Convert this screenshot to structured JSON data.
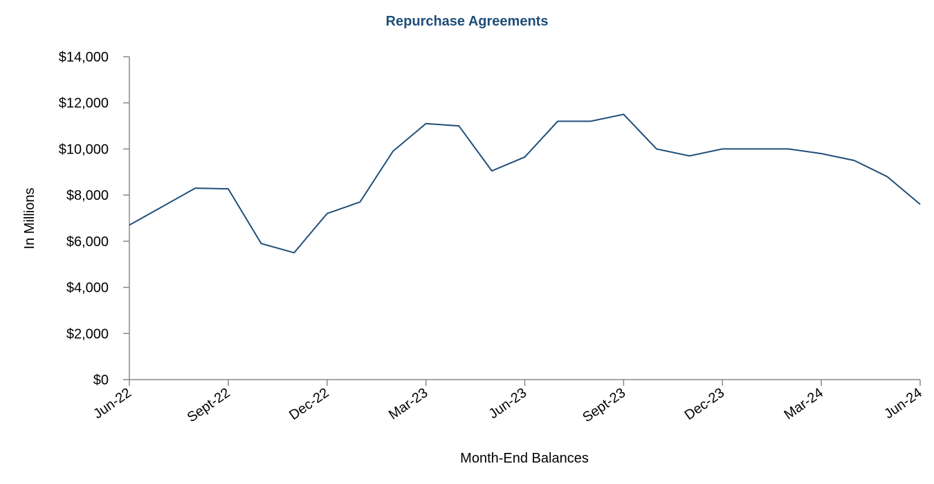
{
  "chart_data": {
    "type": "line",
    "title": "Repurchase Agreements",
    "x_label": "Month-End Balances",
    "y_label": "In Millions",
    "categories": [
      "Jun-22",
      null,
      null,
      "Sept-22",
      null,
      null,
      "Dec-22",
      null,
      null,
      "Mar-23",
      null,
      null,
      "Jun-23",
      null,
      null,
      "Sept-23",
      null,
      null,
      "Dec-23",
      null,
      null,
      "Mar-24",
      null,
      null,
      "Jun-24"
    ],
    "series": [
      {
        "name": "Repurchase Agreements",
        "color": "#1f4e79",
        "values": [
          6700,
          7500,
          8300,
          8270,
          5900,
          5500,
          7200,
          7700,
          9900,
          11100,
          11000,
          9050,
          9650,
          11200,
          11200,
          11500,
          10000,
          9700,
          10000,
          10000,
          10000,
          9800,
          9500,
          8800,
          7600
        ]
      }
    ],
    "ylim": [
      0,
      14000
    ],
    "yticks": [
      {
        "value": 0,
        "label": "$0"
      },
      {
        "value": 2000,
        "label": "$2,000"
      },
      {
        "value": 4000,
        "label": "$4,000"
      },
      {
        "value": 6000,
        "label": "$6,000"
      },
      {
        "value": 8000,
        "label": "$8,000"
      },
      {
        "value": 10000,
        "label": "$10,000"
      },
      {
        "value": 12000,
        "label": "$12,000"
      },
      {
        "value": 14000,
        "label": "$14,000"
      }
    ],
    "grid": false
  }
}
